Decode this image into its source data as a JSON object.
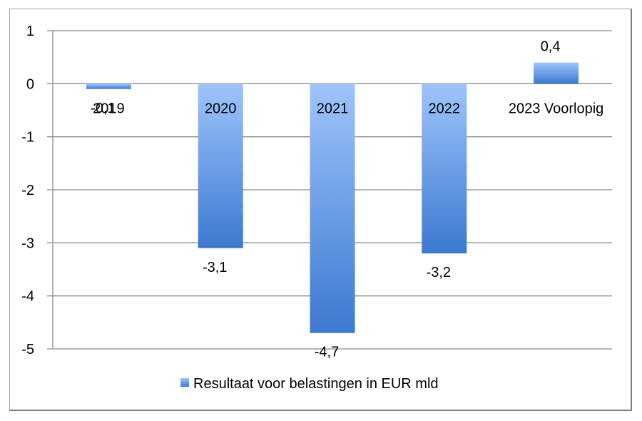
{
  "chart_data": {
    "type": "bar",
    "categories": [
      "2019",
      "2020",
      "2021",
      "2022",
      "2023 Voorlopig"
    ],
    "series": [
      {
        "name": "Resultaat voor belastingen in EUR mld",
        "values": [
          -0.1,
          -3.1,
          -4.7,
          -3.2,
          0.4
        ]
      }
    ],
    "data_labels": [
      "-0,1",
      "-3,1",
      "-4,7",
      "-3,2",
      "0,4"
    ],
    "y_ticks": [
      "1",
      "0",
      "-1",
      "-2",
      "-3",
      "-4",
      "-5"
    ],
    "y_tick_values": [
      1,
      0,
      -1,
      -2,
      -3,
      -4,
      -5
    ],
    "ylim": [
      -5,
      1
    ],
    "grid": true,
    "legend_position": "bottom",
    "colors": {
      "bar_top": "#9fc4fb",
      "bar_bottom": "#3c79d0",
      "grid": "#8c8c8c"
    }
  }
}
